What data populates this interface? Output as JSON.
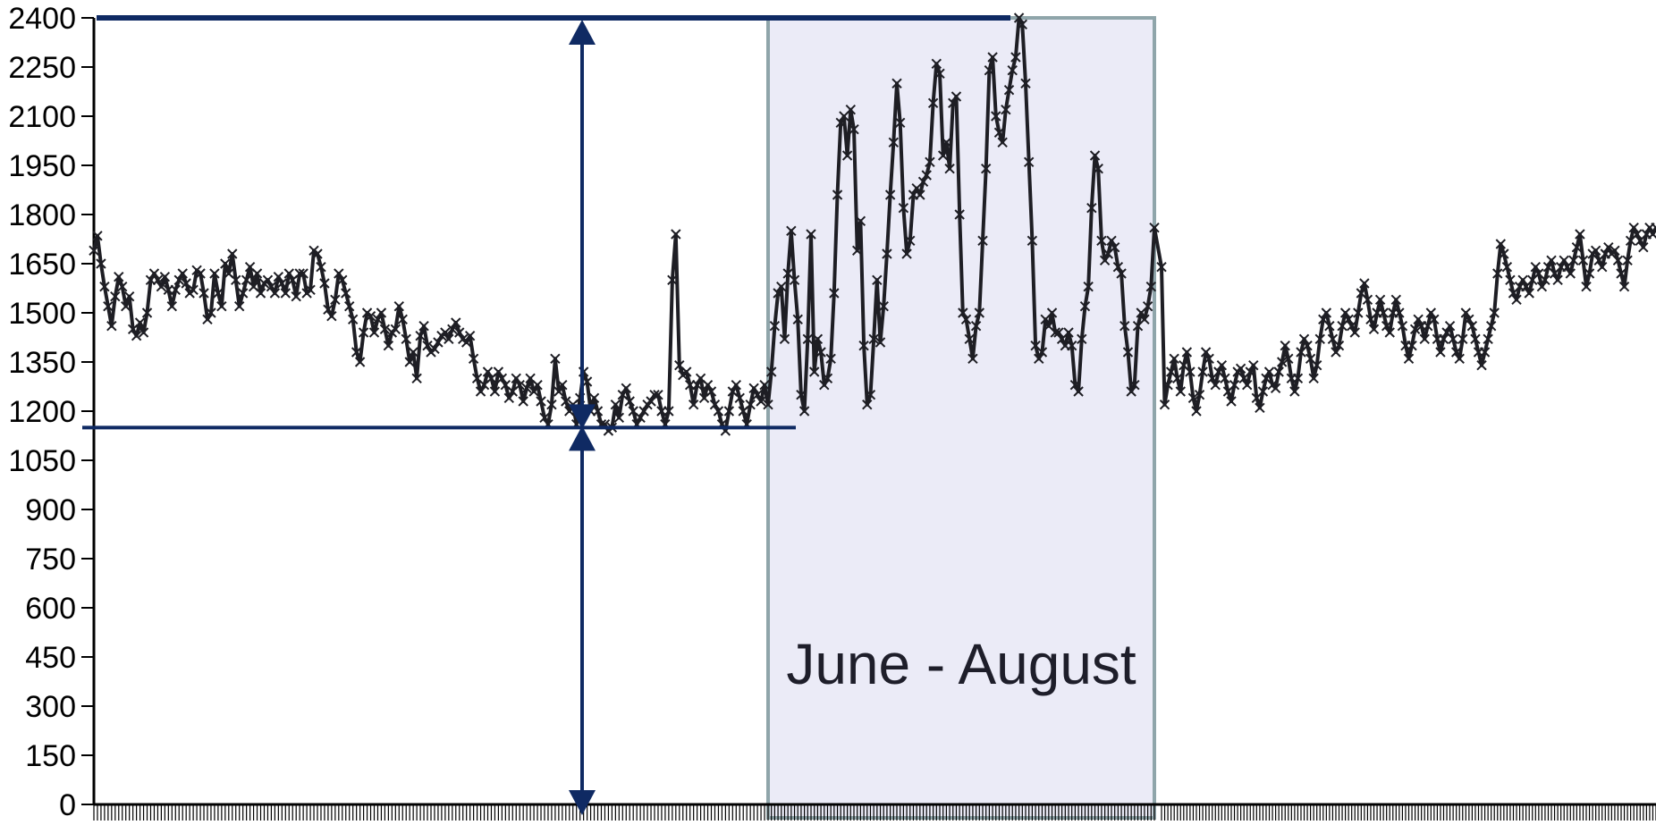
{
  "chart_data": {
    "type": "line",
    "title": "",
    "xlabel": "",
    "ylabel": "",
    "ylim": [
      0,
      2400
    ],
    "y_ticks": [
      0,
      150,
      300,
      450,
      600,
      750,
      900,
      1050,
      1200,
      1350,
      1500,
      1650,
      1800,
      1950,
      2100,
      2250,
      2400
    ],
    "y_tick_labels": [
      "0",
      "150",
      "300",
      "450",
      "600",
      "750",
      "900",
      "1050",
      "1200",
      "1350",
      "1500",
      "1650",
      "1800",
      "1950",
      "2100",
      "2250",
      "2400"
    ],
    "x_tick_labels_shown": false,
    "grid": false,
    "legend": "none",
    "marker": "x",
    "series_color": "#1e1e24",
    "series": [
      {
        "values": [
          1690,
          1735,
          1650,
          1580,
          1520,
          1460,
          1550,
          1610,
          1580,
          1520,
          1550,
          1450,
          1430,
          1470,
          1440,
          1500,
          1600,
          1620,
          1600,
          1580,
          1610,
          1570,
          1520,
          1570,
          1600,
          1620,
          1590,
          1560,
          1570,
          1630,
          1620,
          1560,
          1480,
          1500,
          1620,
          1560,
          1520,
          1650,
          1620,
          1680,
          1600,
          1520,
          1560,
          1600,
          1640,
          1580,
          1620,
          1560,
          1590,
          1600,
          1580,
          1560,
          1610,
          1590,
          1560,
          1620,
          1600,
          1550,
          1620,
          1620,
          1560,
          1570,
          1690,
          1680,
          1640,
          1590,
          1510,
          1490,
          1540,
          1620,
          1600,
          1560,
          1520,
          1480,
          1380,
          1350,
          1440,
          1500,
          1490,
          1440,
          1480,
          1500,
          1450,
          1400,
          1440,
          1450,
          1520,
          1480,
          1420,
          1350,
          1380,
          1300,
          1430,
          1460,
          1400,
          1380,
          1390,
          1410,
          1430,
          1440,
          1420,
          1450,
          1470,
          1440,
          1420,
          1410,
          1430,
          1360,
          1300,
          1260,
          1280,
          1320,
          1300,
          1260,
          1320,
          1300,
          1280,
          1240,
          1260,
          1300,
          1280,
          1230,
          1270,
          1300,
          1260,
          1280,
          1230,
          1180,
          1160,
          1220,
          1360,
          1260,
          1280,
          1230,
          1200,
          1220,
          1160,
          1240,
          1320,
          1290,
          1200,
          1240,
          1200,
          1160,
          1160,
          1140,
          1150,
          1220,
          1180,
          1250,
          1270,
          1230,
          1200,
          1160,
          1180,
          1200,
          1220,
          1230,
          1250,
          1250,
          1200,
          1160,
          1200,
          1600,
          1740,
          1340,
          1310,
          1320,
          1280,
          1220,
          1280,
          1300,
          1240,
          1280,
          1260,
          1220,
          1200,
          1160,
          1140,
          1200,
          1260,
          1280,
          1240,
          1200,
          1160,
          1220,
          1270,
          1250,
          1230,
          1280
        ],
        "band_values": [
          1220,
          1320,
          1460,
          1560,
          1580,
          1420,
          1620,
          1750,
          1600,
          1480,
          1250,
          1200,
          1420,
          1740,
          1320,
          1420,
          1380,
          1280,
          1300,
          1360,
          1560,
          1860,
          2080,
          2100,
          1980,
          2120,
          2060,
          1690,
          1780,
          1400,
          1220,
          1250,
          1420,
          1600,
          1410,
          1520,
          1680,
          1860,
          2020,
          2200,
          2080,
          1820,
          1680,
          1720,
          1860,
          1880,
          1860,
          1900,
          1920,
          1960,
          2140,
          2260,
          2230,
          1980,
          2020,
          1940,
          2140,
          2160,
          1800,
          1500,
          1480,
          1420,
          1360,
          1460,
          1500,
          1720,
          1940,
          2240,
          2280,
          2100,
          2050,
          2020,
          2120,
          2180,
          2240,
          2280,
          2400,
          2380,
          2200,
          1960,
          1720,
          1400,
          1360,
          1380,
          1480,
          1460,
          1500,
          1440,
          1440,
          1420,
          1400,
          1440,
          1400,
          1280,
          1260,
          1420,
          1520,
          1580,
          1820,
          1980,
          1940,
          1720,
          1660,
          1680,
          1720,
          1700,
          1640,
          1620,
          1460,
          1380,
          1260,
          1280,
          1460,
          1500,
          1480,
          1520,
          1580,
          1760
        ],
        "after_values": [
          1640,
          1220,
          1280,
          1320,
          1360,
          1300,
          1260,
          1340,
          1380,
          1320,
          1240,
          1200,
          1250,
          1320,
          1380,
          1360,
          1300,
          1280,
          1320,
          1340,
          1300,
          1260,
          1230,
          1280,
          1320,
          1330,
          1300,
          1280,
          1320,
          1340,
          1240,
          1210,
          1260,
          1300,
          1320,
          1280,
          1270,
          1320,
          1350,
          1400,
          1360,
          1300,
          1260,
          1300,
          1380,
          1420,
          1400,
          1360,
          1300,
          1340,
          1420,
          1480,
          1500,
          1460,
          1420,
          1380,
          1400,
          1460,
          1500,
          1480,
          1460,
          1440,
          1500,
          1560,
          1590,
          1540,
          1480,
          1450,
          1500,
          1540,
          1500,
          1460,
          1440,
          1500,
          1540,
          1500,
          1460,
          1400,
          1360,
          1400,
          1450,
          1480,
          1460,
          1420,
          1460,
          1500,
          1480,
          1420,
          1380,
          1420,
          1440,
          1460,
          1420,
          1380,
          1360,
          1420,
          1500,
          1480,
          1460,
          1420,
          1380,
          1340,
          1380,
          1420,
          1460,
          1500,
          1620,
          1710,
          1680,
          1640,
          1600,
          1560,
          1540,
          1580,
          1600,
          1580,
          1560,
          1600,
          1640,
          1620,
          1580,
          1600,
          1640,
          1660,
          1620,
          1600,
          1640,
          1660,
          1640,
          1620,
          1660,
          1700,
          1740,
          1660,
          1580,
          1620,
          1680,
          1690,
          1660,
          1640,
          1680,
          1700,
          1680,
          1690,
          1660,
          1620,
          1580,
          1660,
          1720,
          1760,
          1740,
          1720,
          1700,
          1740,
          1760,
          1740,
          1760
        ]
      }
    ],
    "band": {
      "label": "June - August",
      "fill": "#ebebf7",
      "stroke": "#8fa5aa"
    },
    "annotation_color": "#0f2a63",
    "upper_level": 2400,
    "lower_level": 1150
  }
}
